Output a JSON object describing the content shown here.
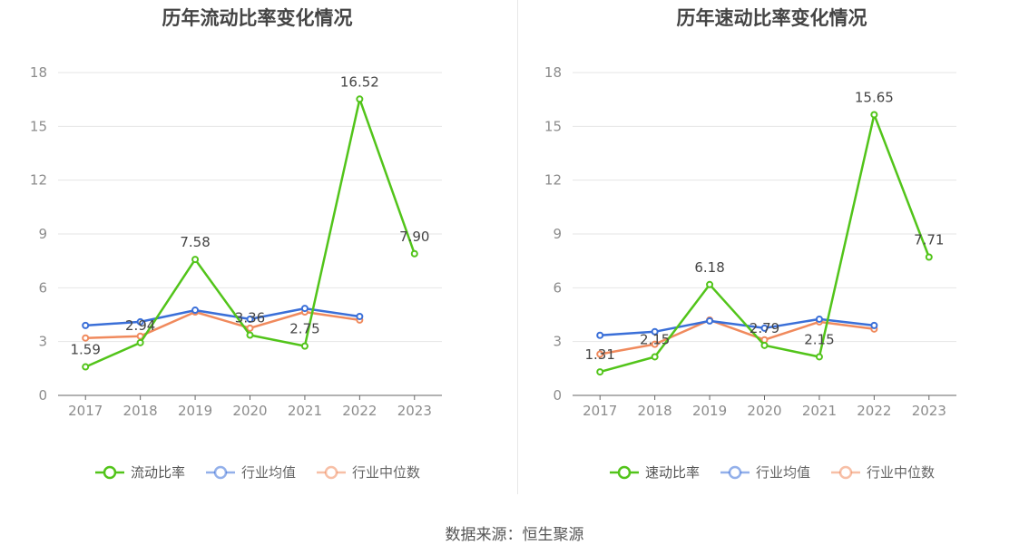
{
  "footer": {
    "source": "数据来源：恒生聚源"
  },
  "chart_data": [
    {
      "type": "line",
      "title": "历年流动比率变化情况",
      "categories": [
        "2017",
        "2018",
        "2019",
        "2020",
        "2021",
        "2022",
        "2023"
      ],
      "ylim": [
        0,
        18
      ],
      "yticks": [
        0,
        3,
        6,
        9,
        12,
        15,
        18
      ],
      "grid": true,
      "legend_position": "bottom",
      "series": [
        {
          "name": "流动比率",
          "color": "#52c41a",
          "values": [
            1.59,
            2.94,
            7.58,
            3.36,
            2.75,
            16.52,
            7.9
          ],
          "labels": [
            "1.59",
            "2.94",
            "7.58",
            "3.36",
            "2.75",
            "16.52",
            "7.90"
          ]
        },
        {
          "name": "行业均值",
          "color": "#3a6fd8",
          "values": [
            3.9,
            4.1,
            4.75,
            4.25,
            4.85,
            4.4,
            null
          ]
        },
        {
          "name": "行业中位数",
          "color": "#f08a5d",
          "values": [
            3.2,
            3.3,
            4.65,
            3.75,
            4.65,
            4.2,
            null
          ]
        }
      ]
    },
    {
      "type": "line",
      "title": "历年速动比率变化情况",
      "categories": [
        "2017",
        "2018",
        "2019",
        "2020",
        "2021",
        "2022",
        "2023"
      ],
      "ylim": [
        0,
        18
      ],
      "yticks": [
        0,
        3,
        6,
        9,
        12,
        15,
        18
      ],
      "grid": true,
      "legend_position": "bottom",
      "series": [
        {
          "name": "速动比率",
          "color": "#52c41a",
          "values": [
            1.31,
            2.15,
            6.18,
            2.79,
            2.15,
            15.65,
            7.71
          ],
          "labels": [
            "1.31",
            "2.15",
            "6.18",
            "2.79",
            "2.15",
            "15.65",
            "7.71"
          ]
        },
        {
          "name": "行业均值",
          "color": "#3a6fd8",
          "values": [
            3.35,
            3.55,
            4.15,
            3.75,
            4.25,
            3.9,
            null
          ]
        },
        {
          "name": "行业中位数",
          "color": "#f08a5d",
          "values": [
            2.3,
            2.85,
            4.2,
            3.1,
            4.1,
            3.7,
            null
          ]
        }
      ]
    }
  ]
}
